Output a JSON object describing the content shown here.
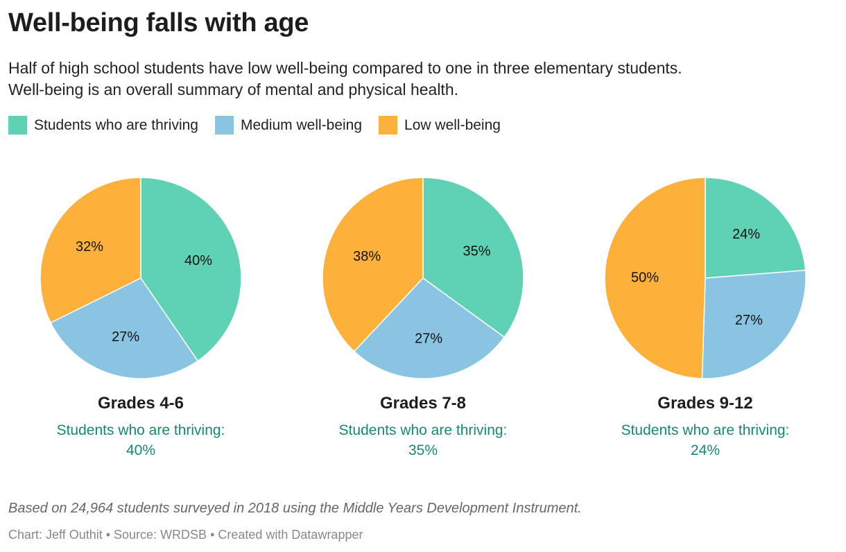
{
  "title": "Well-being falls with age",
  "subtitle_lines": [
    "Half of high school students have low well-being compared to one in three elementary students.",
    "Well-being is an overall summary of mental and physical health."
  ],
  "colors": {
    "thriving": "#5fd1b4",
    "medium": "#89c5e3",
    "low": "#fdb13b",
    "note": "#138a70"
  },
  "chart_data": [
    {
      "type": "pie",
      "title": "Grades 4-6",
      "note_label": "Students who are thriving:",
      "note_value": "40%",
      "slices": [
        {
          "name": "Students who are thriving",
          "value": 40
        },
        {
          "name": "Medium well-being",
          "value": 27
        },
        {
          "name": "Low well-being",
          "value": 32
        }
      ]
    },
    {
      "type": "pie",
      "title": "Grades 7-8",
      "note_label": "Students who are thriving:",
      "note_value": "35%",
      "slices": [
        {
          "name": "Students who are thriving",
          "value": 35
        },
        {
          "name": "Medium well-being",
          "value": 27
        },
        {
          "name": "Low well-being",
          "value": 38
        }
      ]
    },
    {
      "type": "pie",
      "title": "Grades 9-12",
      "note_label": "Students who are thriving:",
      "note_value": "24%",
      "slices": [
        {
          "name": "Students who are thriving",
          "value": 24
        },
        {
          "name": "Medium well-being",
          "value": 27
        },
        {
          "name": "Low well-being",
          "value": 50
        }
      ]
    }
  ],
  "legend": [
    {
      "label": "Students who are thriving",
      "key": "thriving"
    },
    {
      "label": "Medium well-being",
      "key": "medium"
    },
    {
      "label": "Low well-being",
      "key": "low"
    }
  ],
  "notes": "Based on 24,964 students surveyed in 2018 using the Middle Years Development Instrument.",
  "credit": "Chart: Jeff Outhit • Source: WRDSB • Created with Datawrapper"
}
